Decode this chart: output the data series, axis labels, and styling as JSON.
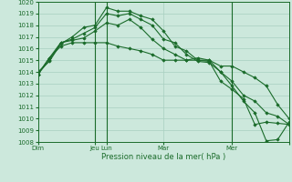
{
  "background_color": "#cce8dc",
  "grid_color": "#a8cfc0",
  "line_color": "#1a6b2a",
  "marker_color": "#1a6b2a",
  "title": "Pression niveau de la mer( hPa )",
  "ylim": [
    1008,
    1020
  ],
  "xlim": [
    0,
    22
  ],
  "series": [
    {
      "x": [
        0,
        1,
        2,
        3,
        4,
        5,
        6,
        7,
        8,
        9,
        10,
        11,
        12,
        13,
        14,
        15,
        16,
        17,
        18,
        19,
        20,
        21,
        22
      ],
      "y": [
        1014.0,
        1014.9,
        1016.4,
        1017.0,
        1017.8,
        1018.0,
        1019.5,
        1019.2,
        1019.2,
        1018.8,
        1018.5,
        1017.5,
        1016.2,
        1015.8,
        1015.0,
        1014.9,
        1013.2,
        1012.5,
        1011.7,
        1009.5,
        1009.7,
        1009.6,
        1009.5
      ]
    },
    {
      "x": [
        0,
        1,
        2,
        3,
        4,
        5,
        6,
        7,
        8,
        9,
        10,
        11,
        12,
        13,
        14,
        15,
        16,
        17,
        18,
        19,
        20,
        21,
        22
      ],
      "y": [
        1013.8,
        1015.0,
        1016.5,
        1016.8,
        1017.3,
        1017.8,
        1019.0,
        1018.8,
        1019.0,
        1018.5,
        1018.0,
        1016.8,
        1016.5,
        1015.5,
        1014.9,
        1014.8,
        1014.0,
        1012.8,
        1011.5,
        1010.5,
        1008.1,
        1008.2,
        1009.7
      ]
    },
    {
      "x": [
        0,
        1,
        2,
        3,
        4,
        5,
        6,
        7,
        8,
        9,
        10,
        11,
        12,
        13,
        14,
        15,
        16,
        17,
        18,
        19,
        20,
        21,
        22
      ],
      "y": [
        1013.8,
        1015.2,
        1016.5,
        1016.7,
        1016.9,
        1017.5,
        1018.2,
        1018.0,
        1018.5,
        1017.8,
        1016.8,
        1016.0,
        1015.5,
        1015.0,
        1015.2,
        1015.0,
        1014.0,
        1013.2,
        1012.0,
        1011.5,
        1010.5,
        1010.2,
        1009.5
      ]
    },
    {
      "x": [
        0,
        1,
        2,
        3,
        4,
        5,
        6,
        7,
        8,
        9,
        10,
        11,
        12,
        13,
        14,
        15,
        16,
        17,
        18,
        19,
        20,
        21,
        22
      ],
      "y": [
        1013.8,
        1015.2,
        1016.2,
        1016.5,
        1016.5,
        1016.5,
        1016.5,
        1016.2,
        1016.0,
        1015.8,
        1015.5,
        1015.0,
        1015.0,
        1015.0,
        1015.0,
        1015.0,
        1014.5,
        1014.5,
        1014.0,
        1013.5,
        1012.8,
        1011.2,
        1010.0
      ]
    }
  ],
  "vline_positions": [
    5,
    6,
    17
  ],
  "xtick_positions": [
    0,
    5,
    6,
    11,
    17,
    22
  ],
  "xtick_labels": [
    "Dim",
    "Jeu",
    "Lun",
    "Mar",
    "Mer",
    ""
  ],
  "marker": "D",
  "markersize": 1.8,
  "linewidth": 0.8,
  "tick_fontsize": 5.0,
  "xlabel_fontsize": 6.0
}
